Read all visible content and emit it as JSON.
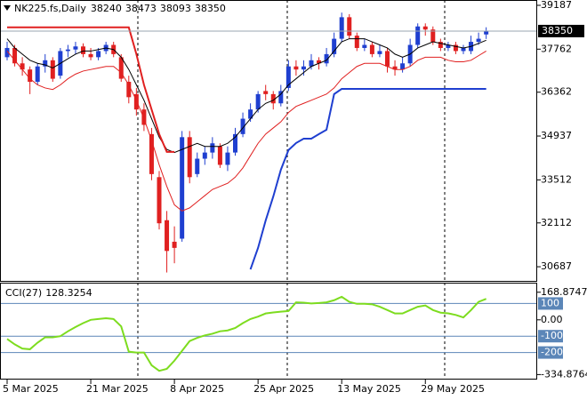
{
  "chart_data": [
    {
      "type": "candlestick",
      "title": "NK225.fs,Daily",
      "categories": [
        "5 Mar 2025",
        null,
        null,
        null,
        null,
        null,
        null,
        null,
        null,
        null,
        null,
        "21 Mar 2025",
        null,
        null,
        null,
        null,
        null,
        null,
        null,
        null,
        null,
        null,
        "8 Apr 2025",
        null,
        null,
        null,
        null,
        null,
        null,
        null,
        null,
        null,
        null,
        "25 Apr 2025",
        null,
        null,
        null,
        null,
        null,
        null,
        null,
        null,
        null,
        null,
        "13 May 2025",
        null,
        null,
        null,
        null,
        null,
        null,
        null,
        null,
        null,
        null,
        "29 May 2025",
        null,
        null,
        null,
        null,
        null,
        null,
        null,
        null
      ],
      "open": [
        37500,
        37800,
        37300,
        37100,
        36700,
        37200,
        37400,
        36900,
        37700,
        37750,
        37850,
        37600,
        37500,
        37700,
        37900,
        37500,
        36700,
        36300,
        35800,
        35000,
        33600,
        32200,
        31500,
        31600,
        34900,
        33700,
        34200,
        34400,
        34600,
        34000,
        34400,
        35000,
        35500,
        35800,
        36400,
        36300,
        36000,
        36500,
        37200,
        37100,
        37200,
        37400,
        37300,
        37600,
        38100,
        38800,
        38200,
        37800,
        37900,
        37600,
        37700,
        37200,
        37100,
        37300,
        37900,
        38500,
        38400,
        38000,
        37800,
        37900,
        37700,
        37700,
        38000,
        38240
      ],
      "high": [
        38000,
        37900,
        37500,
        37200,
        37300,
        37600,
        37500,
        37800,
        37900,
        38000,
        37950,
        37800,
        37800,
        38000,
        38000,
        37600,
        36900,
        36500,
        36000,
        35200,
        33800,
        32500,
        32000,
        35100,
        35100,
        34400,
        34600,
        34900,
        34700,
        34600,
        35200,
        35700,
        36000,
        36400,
        36600,
        36400,
        36600,
        37400,
        37400,
        37400,
        37600,
        37500,
        37800,
        38300,
        38950,
        38900,
        38300,
        38100,
        38000,
        37900,
        37800,
        37400,
        37500,
        38100,
        38600,
        38600,
        38500,
        38100,
        38000,
        38000,
        37900,
        38200,
        38300,
        38473
      ],
      "low": [
        37400,
        37200,
        36900,
        36300,
        36600,
        37000,
        36700,
        36800,
        37500,
        37600,
        37500,
        37400,
        37400,
        37600,
        37500,
        36700,
        36000,
        35600,
        35100,
        33500,
        31900,
        30500,
        30800,
        31500,
        33400,
        33600,
        34000,
        34200,
        33900,
        33800,
        34300,
        34900,
        35400,
        35700,
        36100,
        35800,
        35900,
        36400,
        36900,
        36900,
        37100,
        37100,
        37200,
        37500,
        38000,
        38100,
        37700,
        37700,
        37500,
        37500,
        37000,
        36900,
        37000,
        37200,
        37800,
        38200,
        37900,
        37700,
        37700,
        37600,
        37600,
        37600,
        37900,
        38093
      ],
      "close": [
        37800,
        37300,
        37100,
        36700,
        37200,
        37400,
        36800,
        37700,
        37750,
        37850,
        37600,
        37500,
        37700,
        37900,
        37600,
        36800,
        36200,
        35800,
        35300,
        33700,
        32100,
        31200,
        31300,
        34900,
        33600,
        34200,
        34400,
        34700,
        34000,
        34400,
        35000,
        35500,
        35800,
        36300,
        36300,
        36000,
        36400,
        37200,
        37100,
        37200,
        37400,
        37300,
        37600,
        38100,
        38800,
        38200,
        37800,
        37900,
        37600,
        37700,
        37200,
        37100,
        37300,
        37900,
        38500,
        38400,
        38000,
        37800,
        37900,
        37700,
        37800,
        38000,
        38100,
        38350
      ],
      "up_color": "#1f3fd0",
      "down_color": "#e02020",
      "overlays": [
        {
          "color": "#000000",
          "width": 1,
          "values": [
            38100,
            37800,
            37600,
            37400,
            37300,
            37250,
            37150,
            37300,
            37450,
            37600,
            37700,
            37700,
            37750,
            37800,
            37750,
            37500,
            37100,
            36600,
            36100,
            35500,
            34900,
            34500,
            34400,
            34500,
            34600,
            34700,
            34600,
            34600,
            34600,
            34700,
            34900,
            35200,
            35500,
            35800,
            36000,
            36100,
            36300,
            36600,
            36800,
            37000,
            37200,
            37300,
            37400,
            37700,
            38000,
            38100,
            38100,
            38100,
            38000,
            37900,
            37800,
            37600,
            37500,
            37600,
            37800,
            37900,
            38000,
            37950,
            37900,
            37850,
            37800,
            37850,
            37950,
            38050
          ]
        },
        {
          "color": "#e02020",
          "width": 1,
          "values": [
            37700,
            37400,
            37100,
            36800,
            36600,
            36500,
            36450,
            36600,
            36800,
            36950,
            37050,
            37100,
            37150,
            37200,
            37200,
            37000,
            36600,
            36100,
            35500,
            34800,
            34000,
            33300,
            32700,
            32500,
            32600,
            32800,
            33000,
            33200,
            33300,
            33400,
            33600,
            33900,
            34300,
            34700,
            35000,
            35200,
            35400,
            35700,
            35900,
            36000,
            36100,
            36200,
            36300,
            36500,
            36800,
            37000,
            37200,
            37300,
            37300,
            37300,
            37200,
            37100,
            37100,
            37200,
            37400,
            37500,
            37500,
            37500,
            37400,
            37350,
            37350,
            37400,
            37550,
            37700
          ]
        },
        {
          "color": "#e02020",
          "width": 2,
          "values": [
            38470,
            38470,
            38470,
            38470,
            38470,
            38470,
            38470,
            38470,
            38470,
            38470,
            38470,
            38470,
            38470,
            38470,
            38470,
            38470,
            38470,
            37600,
            36600,
            35800,
            35000,
            34420,
            34420,
            null,
            null,
            null,
            null,
            null,
            null,
            null,
            null,
            null,
            null,
            null,
            null,
            null,
            null,
            null,
            null,
            null,
            null,
            null,
            null,
            null,
            null,
            null,
            null,
            null,
            null,
            null,
            null,
            null,
            null,
            null,
            null,
            null,
            null,
            null,
            null,
            null,
            null,
            null,
            null,
            null
          ]
        },
        {
          "color": "#1f3fd0",
          "width": 2,
          "values": [
            null,
            null,
            null,
            null,
            null,
            null,
            null,
            null,
            null,
            null,
            null,
            null,
            null,
            null,
            null,
            null,
            null,
            null,
            null,
            null,
            null,
            null,
            null,
            null,
            null,
            null,
            null,
            null,
            null,
            null,
            null,
            null,
            30600,
            31300,
            32190,
            32970,
            33840,
            34480,
            34710,
            34850,
            34850,
            35000,
            35140,
            36300,
            36470,
            36470,
            36470,
            36470,
            36470,
            36470,
            36470,
            36470,
            36470,
            36470,
            36470,
            36470,
            36470,
            36470,
            36470,
            36470,
            36470,
            36470,
            36470,
            36470
          ]
        }
      ],
      "ylim": [
        30227,
        39331
      ],
      "yticks": [
        39187,
        37762,
        36362,
        34937,
        33512,
        32112,
        30687
      ]
    },
    {
      "type": "line",
      "title": "CCI(27)",
      "color": "#7ddc1f",
      "values": [
        -117,
        -150,
        -176,
        -180,
        -140,
        -107,
        -107,
        -100,
        -70,
        -44,
        -20,
        0,
        5,
        10,
        5,
        -40,
        -195,
        -200,
        -200,
        -278,
        -312,
        -300,
        -250,
        -190,
        -130,
        -110,
        -95,
        -85,
        -70,
        -65,
        -50,
        -20,
        5,
        20,
        39,
        45,
        50,
        54,
        107,
        105,
        100,
        103,
        107,
        120,
        141,
        110,
        98,
        98,
        95,
        80,
        60,
        39,
        39,
        60,
        80,
        88,
        60,
        44,
        40,
        30,
        15,
        59,
        110,
        128.3254
      ],
      "ylim": [
        -360,
        222
      ],
      "yticks": [
        168.8747,
        {
          "value": 0,
          "label": "0.00"
        },
        -334.8764
      ],
      "levels": [
        100,
        -100,
        -200
      ],
      "level_color": "#5b86b8"
    }
  ]
}
